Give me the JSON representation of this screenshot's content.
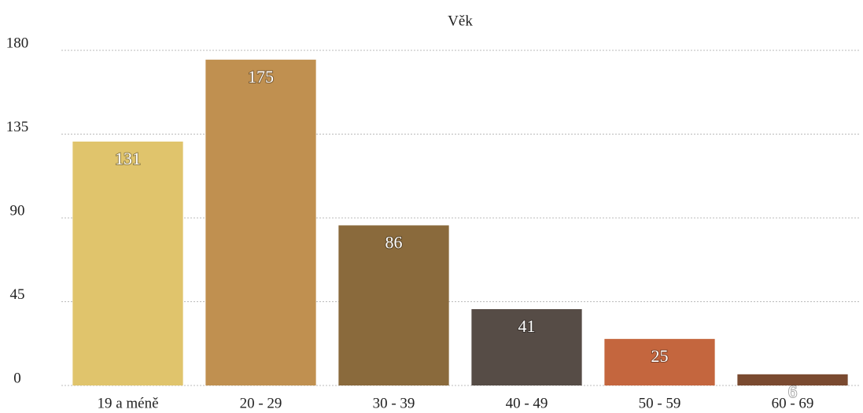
{
  "chart_data": {
    "type": "bar",
    "title": "Věk",
    "categories": [
      "19 a méně",
      "20 - 29",
      "30 - 39",
      "40 - 49",
      "50 - 59",
      "60 - 69"
    ],
    "values": [
      131,
      175,
      86,
      41,
      25,
      6
    ],
    "colors": [
      "#e0c46c",
      "#c09050",
      "#8a6a3c",
      "#564c46",
      "#c4663e",
      "#7a4a30"
    ],
    "ylim": [
      0,
      180
    ],
    "yticks": [
      0,
      45,
      90,
      135,
      180
    ],
    "grid": true
  }
}
